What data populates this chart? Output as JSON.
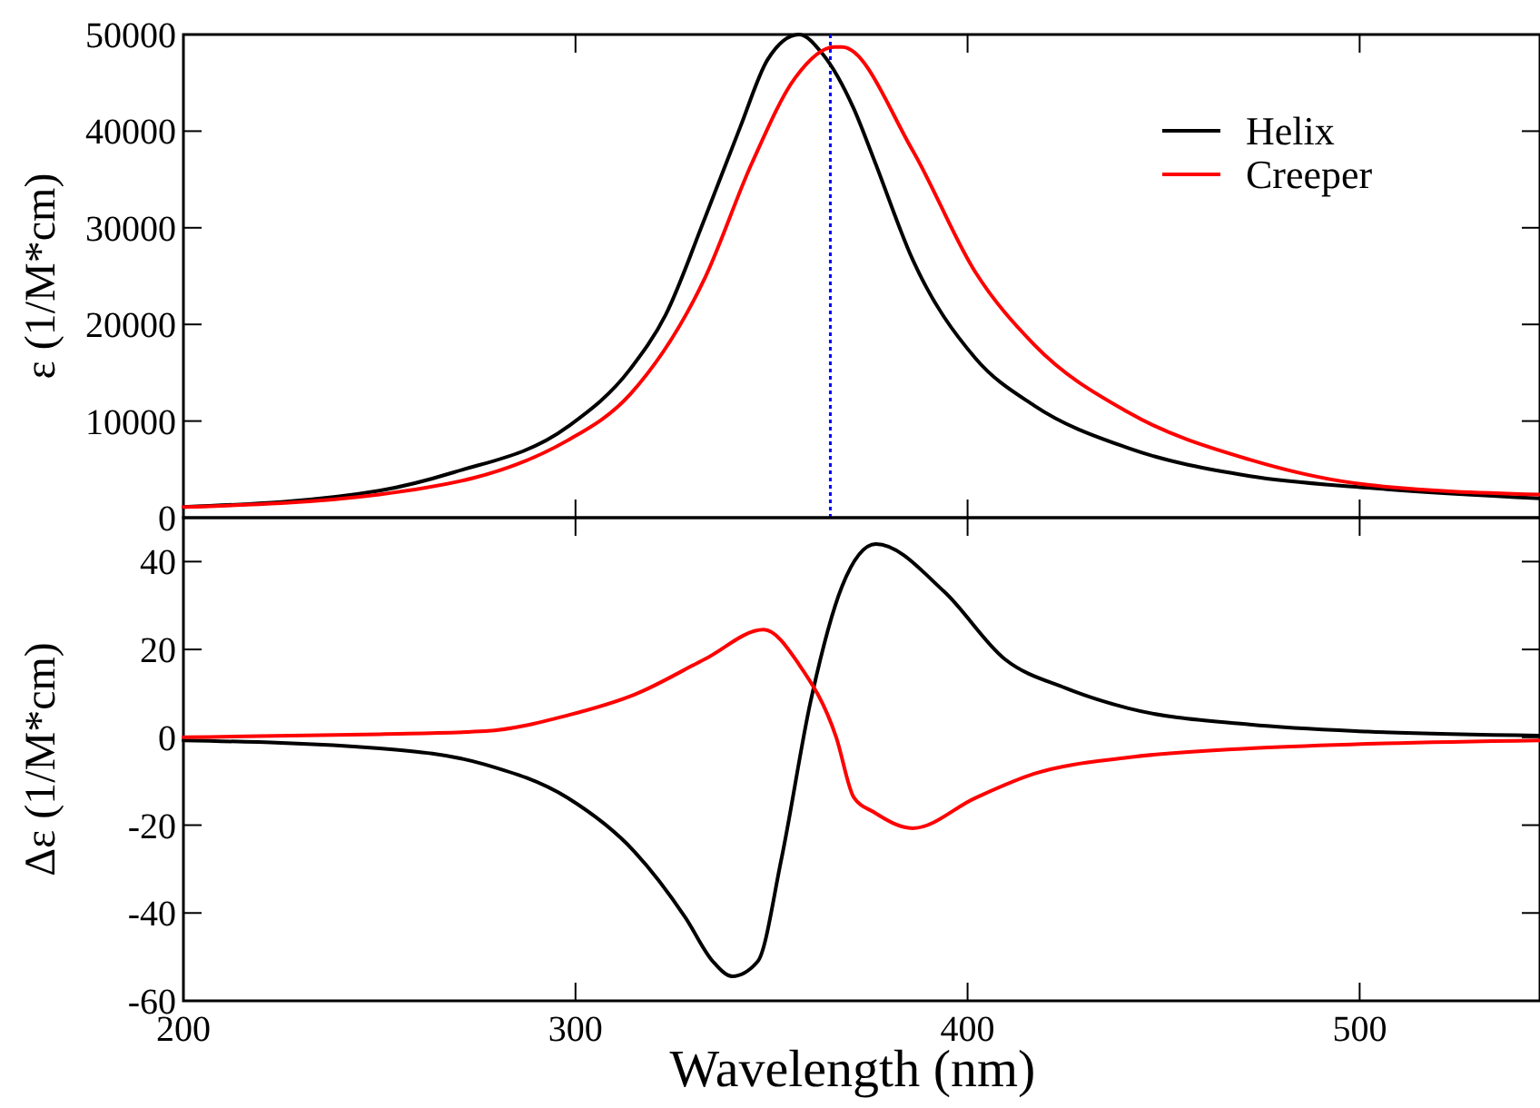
{
  "chart_data": [
    {
      "type": "line",
      "ylabel": "ε (1/M*cm)",
      "xlim": [
        200,
        546
      ],
      "xticks": [
        200,
        300,
        400,
        500
      ],
      "ylim": [
        0,
        50000
      ],
      "yticks": [
        0,
        10000,
        20000,
        30000,
        40000,
        50000
      ],
      "tick_labels": "y",
      "legend": "top right",
      "line_style": "solid",
      "ref_lines": [
        {
          "axis": "x",
          "value": 365,
          "color": "#0000ff",
          "line_style": "dotted"
        }
      ],
      "series": [
        {
          "name": "Helix",
          "color": "#000000",
          "x": [
            200,
            250,
            269,
            298,
            314,
            323,
            333,
            342,
            349,
            357,
            363,
            371,
            376,
            386,
            402,
            417,
            441,
            472,
            502,
            546
          ],
          "values": [
            1100,
            2800,
            4700,
            9400,
            15400,
            21000,
            31000,
            40400,
            47400,
            50000,
            48000,
            42300,
            37200,
            26700,
            16500,
            11600,
            7200,
            4300,
            3100,
            2000
          ]
        },
        {
          "name": "Creeper",
          "color": "#ff0000",
          "x": [
            200,
            250,
            298,
            314,
            333,
            345,
            356,
            366,
            368,
            386,
            402,
            417,
            441,
            472,
            502,
            546
          ],
          "values": [
            1100,
            2400,
            8000,
            12800,
            24800,
            36700,
            45500,
            48700,
            48700,
            38000,
            25400,
            17900,
            10900,
            6000,
            3400,
            2400
          ]
        }
      ]
    },
    {
      "type": "line",
      "xlabel": "Wavelength (nm)",
      "ylabel": "Δε (1/M*cm)",
      "xlim": [
        200,
        546
      ],
      "xticks": [
        200,
        300,
        400,
        500
      ],
      "ylim": [
        -60,
        50
      ],
      "yticks": [
        -60,
        -40,
        -20,
        0,
        20,
        40
      ],
      "line_style": "solid",
      "series": [
        {
          "color": "#000000",
          "x": [
            200,
            250,
            277,
            298,
            315,
            328,
            335,
            340,
            346.5,
            352.5,
            360,
            368,
            376.6,
            394,
            409.5,
            425,
            441,
            472,
            502,
            546
          ],
          "values": [
            -0.7,
            -2.5,
            -6.2,
            -13.8,
            -26,
            -41,
            -51,
            -54.4,
            -51,
            -27.8,
            8.3,
            34.4,
            44,
            33.2,
            17.8,
            11.2,
            6.6,
            2.9,
            1.3,
            0.4
          ]
        },
        {
          "color": "#ff0000",
          "x": [
            200,
            250,
            277,
            298,
            315,
            333,
            348,
            357,
            366.5,
            371,
            376,
            386,
            402,
            417,
            441,
            472,
            502,
            546
          ],
          "values": [
            0,
            0.7,
            1.4,
            5,
            9.7,
            17.8,
            24.5,
            16.6,
            0,
            -13.7,
            -17,
            -20.7,
            -13.8,
            -8.3,
            -4.6,
            -2.5,
            -1.5,
            -0.7
          ]
        }
      ]
    }
  ]
}
